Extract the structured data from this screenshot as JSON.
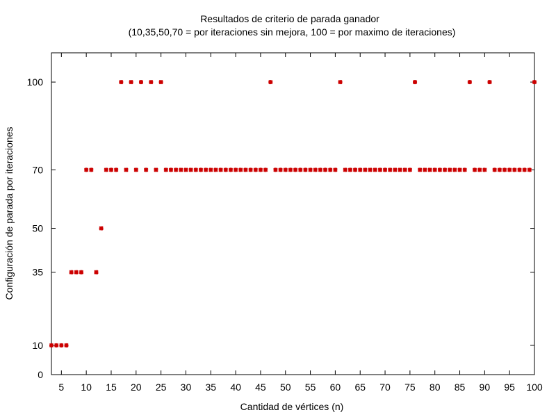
{
  "chart_data": {
    "type": "scatter",
    "title": "Resultados de criterio de parada ganador",
    "subtitle": "(10,35,50,70 = por iteraciones sin mejora, 100 = por maximo de iteraciones)",
    "xlabel": "Cantidad de vértices (n)",
    "ylabel": "Configuración de parada por iteraciones",
    "xlim": [
      3,
      100
    ],
    "ylim": [
      0,
      110
    ],
    "xticks": [
      5,
      10,
      15,
      20,
      25,
      30,
      35,
      40,
      45,
      50,
      55,
      60,
      65,
      70,
      75,
      80,
      85,
      90,
      95,
      100
    ],
    "yticks": [
      0,
      10,
      35,
      50,
      70,
      100
    ],
    "grid": false,
    "legend": "none",
    "point_color": "#cc0000",
    "series": [
      {
        "x": [
          3,
          4,
          5,
          6,
          7,
          8,
          9,
          10,
          11,
          12,
          13,
          14,
          15,
          16,
          17,
          18,
          19,
          20,
          21,
          22,
          23,
          24,
          25,
          26,
          27,
          28,
          29,
          30,
          31,
          32,
          33,
          34,
          35,
          36,
          37,
          38,
          39,
          40,
          41,
          42,
          43,
          44,
          45,
          46,
          47,
          48,
          49,
          50,
          51,
          52,
          53,
          54,
          55,
          56,
          57,
          58,
          59,
          60,
          61,
          62,
          63,
          64,
          65,
          66,
          67,
          68,
          69,
          70,
          71,
          72,
          73,
          74,
          75,
          76,
          77,
          78,
          79,
          80,
          81,
          82,
          83,
          84,
          85,
          86,
          87,
          88,
          89,
          90,
          91,
          92,
          93,
          94,
          95,
          96,
          97,
          98,
          99,
          100
        ],
        "y": [
          10,
          10,
          10,
          10,
          35,
          35,
          35,
          70,
          70,
          35,
          50,
          70,
          70,
          70,
          100,
          70,
          100,
          70,
          100,
          70,
          100,
          70,
          100,
          70,
          70,
          70,
          70,
          70,
          70,
          70,
          70,
          70,
          70,
          70,
          70,
          70,
          70,
          70,
          70,
          70,
          70,
          70,
          70,
          70,
          100,
          70,
          70,
          70,
          70,
          70,
          70,
          70,
          70,
          70,
          70,
          70,
          70,
          70,
          100,
          70,
          70,
          70,
          70,
          70,
          70,
          70,
          70,
          70,
          70,
          70,
          70,
          70,
          70,
          100,
          70,
          70,
          70,
          70,
          70,
          70,
          70,
          70,
          70,
          70,
          100,
          70,
          70,
          70,
          100,
          70,
          70,
          70,
          70,
          70,
          70,
          70,
          70,
          100
        ]
      }
    ]
  }
}
